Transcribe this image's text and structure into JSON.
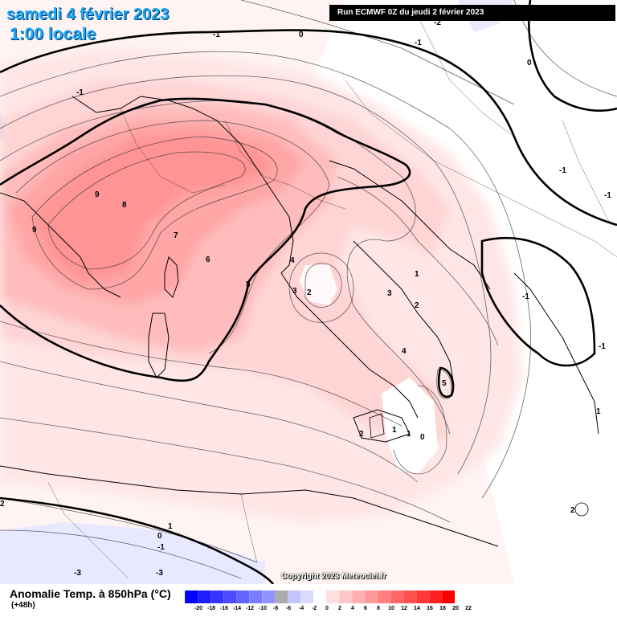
{
  "title": {
    "date": "samedi 4 février 2023",
    "time": "1:00 locale"
  },
  "run_info": "Run ECMWF 0Z du jeudi 2 février 2023",
  "copyright": "Copyright 2023 Meteociel.fr",
  "legend": {
    "title": "Anomalie Temp. à 850hPa (°C)",
    "subtitle": "(+48h)",
    "scale_values": [
      "-20",
      "-18",
      "-16",
      "-14",
      "-12",
      "-10",
      "-8",
      "-6",
      "-4",
      "-2",
      "0",
      "2",
      "4",
      "6",
      "8",
      "10",
      "12",
      "14",
      "16",
      "18",
      "20",
      "22"
    ],
    "colors": [
      "#0000ff",
      "#1d1dff",
      "#3535ff",
      "#4c4cff",
      "#6363ff",
      "#7b7bff",
      "#9393ff",
      "#abababff",
      "#c3c3ff",
      "#dbdbff",
      "#ffffff",
      "#ffe0e0",
      "#ffc8c8",
      "#ffb0b0",
      "#ff9898",
      "#ff8080",
      "#ff6868",
      "#ff5050",
      "#ff3838",
      "#ff2020",
      "#ff0000"
    ]
  },
  "contour_labels": [
    "9",
    "9",
    "8",
    "7",
    "6",
    "5",
    "4",
    "3",
    "2",
    "3",
    "2",
    "1",
    "2",
    "1",
    "0",
    "2",
    "1",
    "0",
    "1",
    "-1",
    "-1",
    "-1",
    "-1",
    "-1",
    "-1",
    "-1",
    "-2",
    "-3",
    "-3",
    "-1",
    "0",
    "1",
    "2",
    "2",
    "5",
    "4",
    "4",
    "1",
    "-1",
    "-2"
  ],
  "region_labels": {
    "peak": "9",
    "sardinia": "6",
    "corsica": "7",
    "sicily_zero": "0",
    "east_minus": "-1",
    "north_zero": "0"
  }
}
